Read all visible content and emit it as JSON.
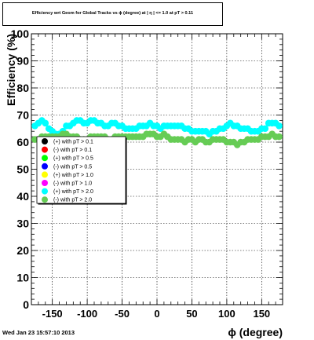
{
  "chart_data": {
    "type": "scatter",
    "title": "Efficiency wrt Geom for Global Tracks vs ϕ (degree) at | η | <= 1.0 at pT > 0.11",
    "xlabel": "ϕ (degree)",
    "ylabel": "Efficiency (%)",
    "xlim": [
      -180,
      180
    ],
    "ylim": [
      0,
      100
    ],
    "xticks": [
      -150,
      -100,
      -50,
      0,
      50,
      100,
      150
    ],
    "yticks": [
      0,
      10,
      20,
      30,
      40,
      50,
      60,
      70,
      80,
      90,
      100
    ],
    "grid": true,
    "legend_position": "left-middle",
    "series": [
      {
        "name": "(+) with pT > 0.1",
        "color": "#000000",
        "x": [],
        "y": []
      },
      {
        "name": "(-) with pT > 0.1",
        "color": "#ff0000",
        "x": [],
        "y": []
      },
      {
        "name": "(+) with pT > 0.5",
        "color": "#00ff00",
        "x": [],
        "y": []
      },
      {
        "name": "(-) with pT > 0.5",
        "color": "#0000ff",
        "x": [],
        "y": []
      },
      {
        "name": "(+) with pT > 1.0",
        "color": "#ffff00",
        "x": [],
        "y": []
      },
      {
        "name": "(-) with pT > 1.0",
        "color": "#ff00ff",
        "x": [],
        "y": []
      },
      {
        "name": "(+) with pT > 2.0",
        "color": "#00ffff",
        "x": [
          -175,
          -170,
          -165,
          -160,
          -155,
          -150,
          -145,
          -140,
          -135,
          -130,
          -125,
          -120,
          -115,
          -110,
          -105,
          -100,
          -95,
          -90,
          -85,
          -80,
          -75,
          -70,
          -65,
          -60,
          -55,
          -50,
          -45,
          -40,
          -35,
          -30,
          -25,
          -20,
          -15,
          -10,
          -5,
          0,
          5,
          10,
          15,
          20,
          25,
          30,
          35,
          40,
          45,
          50,
          55,
          60,
          65,
          70,
          75,
          80,
          85,
          90,
          95,
          100,
          105,
          110,
          115,
          120,
          125,
          130,
          135,
          140,
          145,
          150,
          155,
          160,
          165,
          170,
          175
        ],
        "y": [
          66,
          67,
          68,
          67,
          65,
          64,
          63,
          63,
          64,
          66,
          66,
          67,
          68,
          68,
          67,
          67,
          68,
          68,
          67,
          67,
          66,
          66,
          67,
          67,
          66,
          66,
          65,
          65,
          65,
          65,
          66,
          66,
          66,
          67,
          66,
          66,
          65,
          66,
          66,
          66,
          66,
          66,
          66,
          65,
          65,
          64,
          64,
          64,
          64,
          64,
          63,
          64,
          64,
          65,
          65,
          66,
          67,
          66,
          66,
          65,
          65,
          65,
          64,
          64,
          64,
          65,
          65,
          67,
          67,
          67,
          66
        ]
      },
      {
        "name": "(-) with pT > 2.0",
        "color": "#66cc55",
        "x": [
          -175,
          -170,
          -165,
          -160,
          -155,
          -150,
          -145,
          -140,
          -135,
          -130,
          -125,
          -120,
          -115,
          -110,
          -105,
          -100,
          -95,
          -90,
          -85,
          -80,
          -75,
          -70,
          -65,
          -60,
          -55,
          -50,
          -45,
          -40,
          -35,
          -30,
          -25,
          -20,
          -15,
          -10,
          -5,
          0,
          5,
          10,
          15,
          20,
          25,
          30,
          35,
          40,
          45,
          50,
          55,
          60,
          65,
          70,
          75,
          80,
          85,
          90,
          95,
          100,
          105,
          110,
          115,
          120,
          125,
          130,
          135,
          140,
          145,
          150,
          155,
          160,
          165,
          170,
          175
        ],
        "y": [
          61,
          61,
          62,
          62,
          62,
          62,
          62,
          62,
          63,
          63,
          62,
          62,
          62,
          61,
          61,
          61,
          62,
          62,
          62,
          62,
          62,
          61,
          61,
          62,
          62,
          62,
          62,
          62,
          62,
          62,
          62,
          62,
          63,
          63,
          63,
          62,
          62,
          63,
          62,
          61,
          61,
          61,
          61,
          60,
          61,
          61,
          60,
          61,
          61,
          60,
          60,
          61,
          61,
          61,
          61,
          60,
          60,
          60,
          59,
          60,
          60,
          61,
          61,
          61,
          61,
          62,
          62,
          62,
          63,
          62,
          62
        ]
      }
    ]
  },
  "footer": {
    "datetime": "Wed Jan 23 15:57:10 2013"
  }
}
